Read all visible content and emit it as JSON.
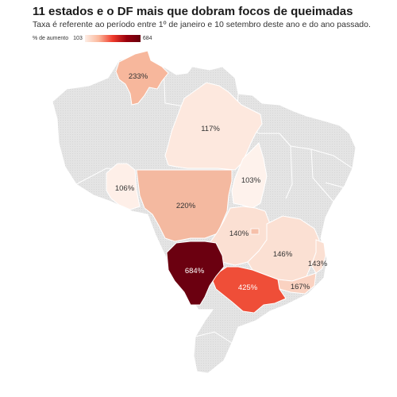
{
  "header": {
    "title": "11 estados e o DF mais que dobram focos de queimadas",
    "subtitle": "Taxa é referente ao período entre 1º de janeiro e 10 setembro deste ano e do ano passado."
  },
  "legend": {
    "label": "% de aumento",
    "min": "103",
    "max": "684",
    "colors": [
      "#fdeee6",
      "#fbb79b",
      "#ef3b2c",
      "#99000d",
      "#67000d"
    ]
  },
  "map": {
    "base_color": "#e3e3e3",
    "regions": [
      {
        "name": "roraima",
        "value": 233,
        "label": "233%",
        "color": "#f7b79c"
      },
      {
        "name": "para",
        "value": 117,
        "label": "117%",
        "color": "#fde8de"
      },
      {
        "name": "rondonia",
        "value": 106,
        "label": "106%",
        "color": "#feefe8"
      },
      {
        "name": "mato-grosso",
        "value": 220,
        "label": "220%",
        "color": "#f4b9a0"
      },
      {
        "name": "tocantins",
        "value": 103,
        "label": "103%",
        "color": "#fef2ec"
      },
      {
        "name": "goias",
        "value": 140,
        "label": "140%",
        "color": "#fbe0d3"
      },
      {
        "name": "distrito-federal",
        "value": null,
        "label": "",
        "color": "#f6c0aa"
      },
      {
        "name": "minas-gerais",
        "value": 146,
        "label": "146%",
        "color": "#fbe0d3"
      },
      {
        "name": "espirito-santo",
        "value": 143,
        "label": "143%",
        "color": "#fbe0d3"
      },
      {
        "name": "rio-de-janeiro",
        "value": 167,
        "label": "167%",
        "color": "#fad2c1"
      },
      {
        "name": "sao-paulo",
        "value": 425,
        "label": "425%",
        "color": "#ef4e38"
      },
      {
        "name": "mato-grosso-do-sul",
        "value": 684,
        "label": "684%",
        "color": "#6b0010"
      }
    ]
  }
}
